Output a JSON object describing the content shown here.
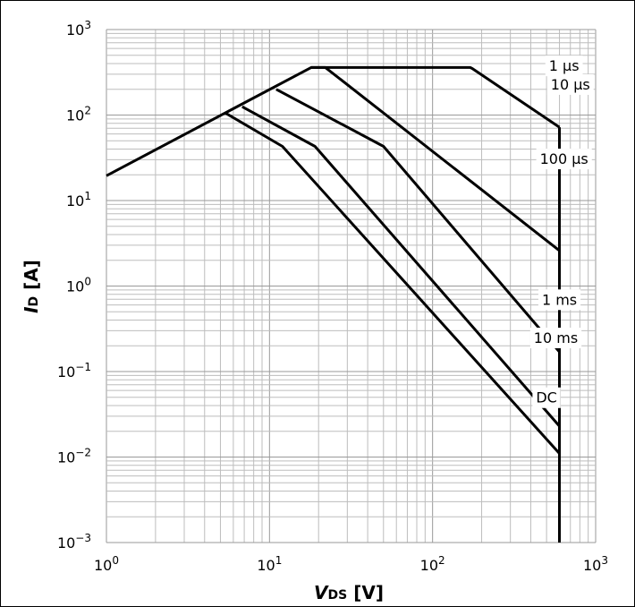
{
  "chart_data": {
    "type": "line",
    "x_scale": "log",
    "y_scale": "log",
    "xlim": [
      1,
      1000
    ],
    "ylim": [
      0.001,
      1000
    ],
    "grid": true,
    "x_tick_labels": [
      {
        "base": "10",
        "exp": "0"
      },
      {
        "base": "10",
        "exp": "1"
      },
      {
        "base": "10",
        "exp": "2"
      },
      {
        "base": "10",
        "exp": "3"
      }
    ],
    "y_tick_labels": [
      {
        "base": "10",
        "exp": "−3"
      },
      {
        "base": "10",
        "exp": "−2"
      },
      {
        "base": "10",
        "exp": "−1"
      },
      {
        "base": "10",
        "exp": "0"
      },
      {
        "base": "10",
        "exp": "1"
      },
      {
        "base": "10",
        "exp": "2"
      },
      {
        "base": "10",
        "exp": "3"
      }
    ],
    "xlabel": {
      "main": "V",
      "sub": "DS",
      "unit": " [V]"
    },
    "ylabel": {
      "main": "I",
      "sub": "D",
      "unit": " [A]"
    },
    "series": [
      {
        "name": "1 µs",
        "label_at": [
          640,
          380
        ],
        "points": [
          [
            1,
            19.5
          ],
          [
            18,
            360
          ],
          [
            170,
            360
          ],
          [
            175,
            350
          ],
          [
            600,
            72
          ]
        ]
      },
      {
        "name": "10 µs",
        "label_at": [
          700,
          230
        ],
        "points": [
          [
            18,
            360
          ],
          [
            22,
            360
          ],
          [
            600,
            2.6
          ]
        ]
      },
      {
        "name": "100 µs",
        "label_at": [
          640,
          31
        ],
        "points": [
          [
            11,
            200
          ],
          [
            50,
            43
          ],
          [
            600,
            0.17
          ]
        ]
      },
      {
        "name": "1 ms",
        "label_at": [
          600,
          0.7
        ],
        "points": [
          [
            6.8,
            125
          ],
          [
            19,
            43
          ],
          [
            600,
            0.023
          ]
        ]
      },
      {
        "name": "10 ms",
        "label_at": [
          570,
          0.25
        ],
        "points": [
          [
            5.4,
            105
          ],
          [
            12,
            43
          ],
          [
            600,
            0.011
          ]
        ]
      },
      {
        "name": "DC",
        "label_at": [
          500,
          0.05
        ],
        "points": [
          [
            600,
            72
          ],
          [
            600,
            0.001
          ]
        ]
      }
    ]
  }
}
